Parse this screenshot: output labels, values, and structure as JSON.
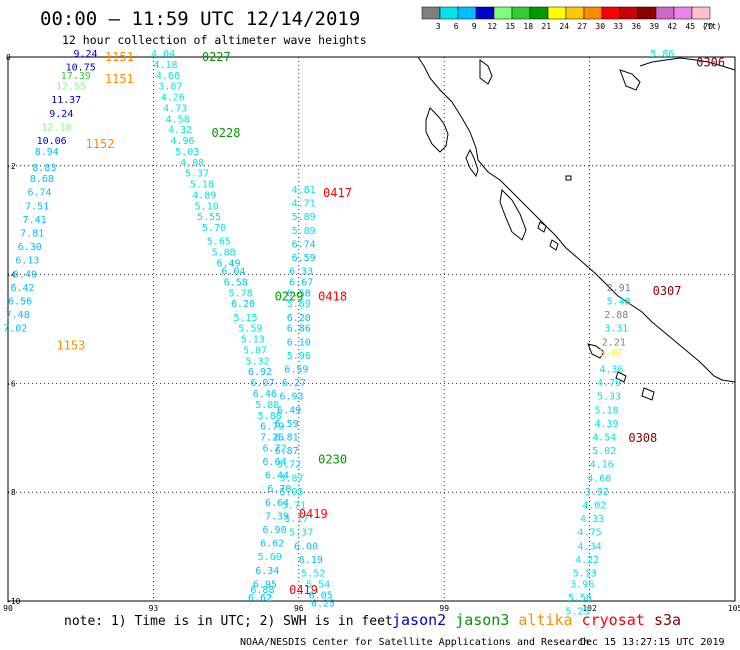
{
  "header": {
    "title": "00:00 – 11:59 UTC 12/14/2019",
    "subtitle": "12 hour collection of altimeter wave heights"
  },
  "colorbar": {
    "colors": [
      "#7f7f7f",
      "#00e5e5",
      "#00bfff",
      "#0000cd",
      "#7fff7f",
      "#32cd32",
      "#009900",
      "#ffff00",
      "#ffc800",
      "#ff8c00",
      "#ff0000",
      "#cd0000",
      "#8b0000",
      "#cd69c9",
      "#ee82ee",
      "#ffc0cb"
    ],
    "labels": [
      "3",
      "6",
      "9",
      "12",
      "15",
      "18",
      "21",
      "24",
      "27",
      "30",
      "33",
      "36",
      "39",
      "42",
      "45",
      "70"
    ],
    "unit": "(ft)"
  },
  "axes": {
    "x_ticks": [
      "90",
      "93",
      "96",
      "99",
      "102",
      "105"
    ],
    "y_ticks": [
      "0",
      "-2",
      "-4",
      "-6",
      "-8",
      "-10"
    ],
    "xlim": [
      90,
      105
    ],
    "ylim": [
      -10,
      0
    ]
  },
  "footer": {
    "note": "note: 1) Time is in UTC; 2) SWH is in feet",
    "credit": "NOAA/NESDIS Center for Satellite Applications and Research",
    "timestamp": "Dec 15 13:27:15 UTC 2019"
  },
  "legend": [
    {
      "name": "jason2",
      "color": "#0000cd"
    },
    {
      "name": "jason3",
      "color": "#009900"
    },
    {
      "name": "altika",
      "color": "#ff8c00"
    },
    {
      "name": "cryosat",
      "color": "#ff0000"
    },
    {
      "name": "s3a",
      "color": "#8b0000"
    }
  ],
  "chart_data": {
    "type": "scatter",
    "xlabel": "",
    "ylabel": "",
    "grid": true,
    "track_times": [
      {
        "text": "1151",
        "lon": 92.0,
        "lat": 0.0,
        "color": "#ff8c00"
      },
      {
        "text": "1151",
        "lon": 92.0,
        "lat": -0.4,
        "color": "#ff8c00"
      },
      {
        "text": "1152",
        "lon": 91.6,
        "lat": -1.6,
        "color": "#ff8c00"
      },
      {
        "text": "1153",
        "lon": 91.0,
        "lat": -5.3,
        "color": "#ff8c00"
      },
      {
        "text": "0227",
        "lon": 94.0,
        "lat": 0.0,
        "color": "#009900"
      },
      {
        "text": "0228",
        "lon": 94.2,
        "lat": -1.4,
        "color": "#009900"
      },
      {
        "text": "0229",
        "lon": 95.5,
        "lat": -4.4,
        "color": "#009900"
      },
      {
        "text": "0230",
        "lon": 96.4,
        "lat": -7.4,
        "color": "#009900"
      },
      {
        "text": "0417",
        "lon": 96.5,
        "lat": -2.5,
        "color": "#ff0000"
      },
      {
        "text": "0418",
        "lon": 96.4,
        "lat": -4.4,
        "color": "#ff0000"
      },
      {
        "text": "0419",
        "lon": 96.0,
        "lat": -8.4,
        "color": "#ff0000"
      },
      {
        "text": "0419",
        "lon": 95.8,
        "lat": -9.8,
        "color": "#ff0000"
      },
      {
        "text": "0307",
        "lon": 103.3,
        "lat": -4.3,
        "color": "#8b0000"
      },
      {
        "text": "0308",
        "lon": 102.8,
        "lat": -7.0,
        "color": "#8b0000"
      },
      {
        "text": "0306",
        "lon": 104.2,
        "lat": -0.1,
        "color": "#8b0000"
      }
    ],
    "series": [
      {
        "name": "altika",
        "color_by_value": true,
        "points": [
          {
            "lon": 91.6,
            "lat": 0.0,
            "v": 9.24,
            "color": "#0000cd"
          },
          {
            "lon": 91.5,
            "lat": -0.25,
            "v": 10.75,
            "color": "#0000cd"
          },
          {
            "lon": 91.4,
            "lat": -0.4,
            "v": 17.39,
            "color": "#32cd32"
          },
          {
            "lon": 91.3,
            "lat": -0.6,
            "v": 12.55,
            "color": "#7fff7f"
          },
          {
            "lon": 91.2,
            "lat": -0.85,
            "v": 11.37,
            "color": "#0000cd"
          },
          {
            "lon": 91.1,
            "lat": -1.1,
            "v": 9.24,
            "color": "#0000cd"
          },
          {
            "lon": 91.0,
            "lat": -1.35,
            "v": 12.18,
            "color": "#7fff7f"
          },
          {
            "lon": 90.9,
            "lat": -1.6,
            "v": 10.06,
            "color": "#0000cd"
          },
          {
            "lon": 90.8,
            "lat": -1.8,
            "v": 8.94,
            "color": "#00bfff"
          },
          {
            "lon": 90.75,
            "lat": -2.1,
            "v": 8.83,
            "color": "#00bfff"
          },
          {
            "lon": 90.7,
            "lat": -2.3,
            "v": 8.68,
            "color": "#00bfff"
          },
          {
            "lon": 90.65,
            "lat": -2.55,
            "v": 6.74,
            "color": "#00bfff"
          },
          {
            "lon": 90.6,
            "lat": -2.8,
            "v": 7.51,
            "color": "#00bfff"
          },
          {
            "lon": 90.55,
            "lat": -3.05,
            "v": 7.41,
            "color": "#00bfff"
          },
          {
            "lon": 90.5,
            "lat": -3.3,
            "v": 7.81,
            "color": "#00bfff"
          },
          {
            "lon": 90.45,
            "lat": -3.55,
            "v": 6.3,
            "color": "#00bfff"
          },
          {
            "lon": 90.4,
            "lat": -3.8,
            "v": 6.13,
            "color": "#00bfff"
          },
          {
            "lon": 90.35,
            "lat": -4.05,
            "v": 6.49,
            "color": "#00bfff"
          },
          {
            "lon": 90.3,
            "lat": -4.3,
            "v": 6.42,
            "color": "#00bfff"
          },
          {
            "lon": 90.25,
            "lat": -4.55,
            "v": 6.56,
            "color": "#00bfff"
          },
          {
            "lon": 90.2,
            "lat": -4.8,
            "v": 7.48,
            "color": "#00bfff"
          },
          {
            "lon": 90.15,
            "lat": -5.05,
            "v": 7.02,
            "color": "#00bfff"
          }
        ]
      },
      {
        "name": "jason3",
        "points": [
          {
            "lon": 93.2,
            "lat": 0.0,
            "v": 4.04
          },
          {
            "lon": 93.25,
            "lat": -0.2,
            "v": 4.18
          },
          {
            "lon": 93.3,
            "lat": -0.4,
            "v": 4.66
          },
          {
            "lon": 93.35,
            "lat": -0.6,
            "v": 3.87
          },
          {
            "lon": 93.4,
            "lat": -0.8,
            "v": 4.26
          },
          {
            "lon": 93.45,
            "lat": -1.0,
            "v": 4.73
          },
          {
            "lon": 93.5,
            "lat": -1.2,
            "v": 4.58
          },
          {
            "lon": 93.55,
            "lat": -1.4,
            "v": 4.32
          },
          {
            "lon": 93.6,
            "lat": -1.6,
            "v": 4.96
          },
          {
            "lon": 93.7,
            "lat": -1.8,
            "v": 5.03
          },
          {
            "lon": 93.8,
            "lat": -2.0,
            "v": 4.88
          },
          {
            "lon": 93.9,
            "lat": -2.2,
            "v": 5.37
          },
          {
            "lon": 94.0,
            "lat": -2.4,
            "v": 5.18
          },
          {
            "lon": 94.05,
            "lat": -2.6,
            "v": 4.89
          },
          {
            "lon": 94.1,
            "lat": -2.8,
            "v": 5.1
          },
          {
            "lon": 94.15,
            "lat": -3.0,
            "v": 5.55
          },
          {
            "lon": 94.25,
            "lat": -3.2,
            "v": 5.7
          },
          {
            "lon": 94.35,
            "lat": -3.45,
            "v": 5.65
          },
          {
            "lon": 94.45,
            "lat": -3.65,
            "v": 5.88
          },
          {
            "lon": 94.55,
            "lat": -3.85,
            "v": 6.49
          },
          {
            "lon": 94.65,
            "lat": -4.0,
            "v": 6.04
          },
          {
            "lon": 94.7,
            "lat": -4.2,
            "v": 6.58
          },
          {
            "lon": 94.8,
            "lat": -4.4,
            "v": 5.78
          },
          {
            "lon": 94.85,
            "lat": -4.6,
            "v": 6.2
          },
          {
            "lon": 94.9,
            "lat": -4.85,
            "v": 5.15
          },
          {
            "lon": 95.0,
            "lat": -5.05,
            "v": 5.59
          },
          {
            "lon": 95.05,
            "lat": -5.25,
            "v": 5.13
          },
          {
            "lon": 95.1,
            "lat": -5.45,
            "v": 5.87
          },
          {
            "lon": 95.15,
            "lat": -5.65,
            "v": 5.32
          },
          {
            "lon": 95.2,
            "lat": -5.85,
            "v": 6.92
          },
          {
            "lon": 95.25,
            "lat": -6.05,
            "v": 6.07
          },
          {
            "lon": 95.3,
            "lat": -6.25,
            "v": 6.46
          },
          {
            "lon": 95.35,
            "lat": -6.45,
            "v": 5.88
          },
          {
            "lon": 95.4,
            "lat": -6.65,
            "v": 5.88
          },
          {
            "lon": 95.45,
            "lat": -6.85,
            "v": 6.79
          },
          {
            "lon": 95.45,
            "lat": -7.05,
            "v": 7.25
          },
          {
            "lon": 95.5,
            "lat": -7.25,
            "v": 6.72
          },
          {
            "lon": 95.5,
            "lat": -7.5,
            "v": 6.64
          },
          {
            "lon": 95.55,
            "lat": -7.75,
            "v": 6.44
          },
          {
            "lon": 95.6,
            "lat": -8.0,
            "v": 6.7
          },
          {
            "lon": 95.55,
            "lat": -8.25,
            "v": 6.64
          },
          {
            "lon": 95.55,
            "lat": -8.5,
            "v": 7.39
          },
          {
            "lon": 95.5,
            "lat": -8.75,
            "v": 6.9
          },
          {
            "lon": 95.45,
            "lat": -9.0,
            "v": 6.62
          },
          {
            "lon": 95.4,
            "lat": -9.25,
            "v": 5.6
          },
          {
            "lon": 95.35,
            "lat": -9.5,
            "v": 6.34
          },
          {
            "lon": 95.3,
            "lat": -9.75,
            "v": 6.95
          },
          {
            "lon": 95.25,
            "lat": -9.85,
            "v": 6.88
          },
          {
            "lon": 95.2,
            "lat": -10.0,
            "v": 6.62
          }
        ]
      },
      {
        "name": "cryosat",
        "points": [
          {
            "lon": 96.1,
            "lat": -2.5,
            "v": 4.81
          },
          {
            "lon": 96.1,
            "lat": -2.75,
            "v": 4.71
          },
          {
            "lon": 96.1,
            "lat": -3.0,
            "v": 5.89
          },
          {
            "lon": 96.1,
            "lat": -3.25,
            "v": 5.89
          },
          {
            "lon": 96.1,
            "lat": -3.5,
            "v": 6.74
          },
          {
            "lon": 96.1,
            "lat": -3.75,
            "v": 6.59
          },
          {
            "lon": 96.05,
            "lat": -4.0,
            "v": 6.33
          },
          {
            "lon": 96.05,
            "lat": -4.2,
            "v": 6.67
          },
          {
            "lon": 96.0,
            "lat": -4.4,
            "v": 6.58
          },
          {
            "lon": 96.0,
            "lat": -4.6,
            "v": 5.69
          },
          {
            "lon": 96.0,
            "lat": -4.85,
            "v": 6.2
          },
          {
            "lon": 96.0,
            "lat": -5.05,
            "v": 6.86
          },
          {
            "lon": 96.0,
            "lat": -5.3,
            "v": 6.1
          },
          {
            "lon": 96.0,
            "lat": -5.55,
            "v": 5.96
          },
          {
            "lon": 95.95,
            "lat": -5.8,
            "v": 6.59
          },
          {
            "lon": 95.9,
            "lat": -6.05,
            "v": 6.27
          },
          {
            "lon": 95.85,
            "lat": -6.3,
            "v": 6.93
          },
          {
            "lon": 95.8,
            "lat": -6.55,
            "v": 6.49
          },
          {
            "lon": 95.75,
            "lat": -6.8,
            "v": 6.59
          },
          {
            "lon": 95.75,
            "lat": -7.05,
            "v": 6.81
          },
          {
            "lon": 95.75,
            "lat": -7.3,
            "v": 6.87
          },
          {
            "lon": 95.8,
            "lat": -7.55,
            "v": 5.72
          },
          {
            "lon": 95.85,
            "lat": -7.8,
            "v": 5.87
          },
          {
            "lon": 95.85,
            "lat": -8.05,
            "v": 5.95
          },
          {
            "lon": 95.9,
            "lat": -8.3,
            "v": 5.71
          },
          {
            "lon": 95.95,
            "lat": -8.55,
            "v": 5.17
          },
          {
            "lon": 96.05,
            "lat": -8.8,
            "v": 5.37
          },
          {
            "lon": 96.15,
            "lat": -9.05,
            "v": 6.0
          },
          {
            "lon": 96.25,
            "lat": -9.3,
            "v": 6.19
          },
          {
            "lon": 96.3,
            "lat": -9.55,
            "v": 5.52
          },
          {
            "lon": 96.4,
            "lat": -9.75,
            "v": 5.54
          },
          {
            "lon": 96.45,
            "lat": -9.95,
            "v": 6.05
          },
          {
            "lon": 96.5,
            "lat": -10.1,
            "v": 6.25
          }
        ]
      },
      {
        "name": "s3a",
        "points": [
          {
            "lon": 103.5,
            "lat": 0.0,
            "v": 5.86
          },
          {
            "lon": 102.6,
            "lat": -4.3,
            "v": 2.91,
            "color": "#7f7f7f"
          },
          {
            "lon": 102.6,
            "lat": -4.55,
            "v": 5.48
          },
          {
            "lon": 102.55,
            "lat": -4.8,
            "v": 2.88,
            "color": "#7f7f7f"
          },
          {
            "lon": 102.55,
            "lat": -5.05,
            "v": 3.31
          },
          {
            "lon": 102.5,
            "lat": -5.3,
            "v": 2.21,
            "color": "#7f7f7f"
          },
          {
            "lon": 102.45,
            "lat": -5.5,
            "v": 3.02,
            "color": "#ffff00"
          },
          {
            "lon": 102.45,
            "lat": -5.8,
            "v": 4.36
          },
          {
            "lon": 102.4,
            "lat": -6.05,
            "v": 4.79
          },
          {
            "lon": 102.4,
            "lat": -6.3,
            "v": 5.33
          },
          {
            "lon": 102.35,
            "lat": -6.55,
            "v": 5.18
          },
          {
            "lon": 102.35,
            "lat": -6.8,
            "v": 4.39
          },
          {
            "lon": 102.3,
            "lat": -7.05,
            "v": 4.54
          },
          {
            "lon": 102.3,
            "lat": -7.3,
            "v": 5.02
          },
          {
            "lon": 102.25,
            "lat": -7.55,
            "v": 4.16
          },
          {
            "lon": 102.2,
            "lat": -7.8,
            "v": 4.68
          },
          {
            "lon": 102.15,
            "lat": -8.05,
            "v": 3.92
          },
          {
            "lon": 102.1,
            "lat": -8.3,
            "v": 4.02
          },
          {
            "lon": 102.05,
            "lat": -8.55,
            "v": 4.33
          },
          {
            "lon": 102.0,
            "lat": -8.8,
            "v": 4.75
          },
          {
            "lon": 102.0,
            "lat": -9.05,
            "v": 4.34
          },
          {
            "lon": 101.95,
            "lat": -9.3,
            "v": 4.22
          },
          {
            "lon": 101.9,
            "lat": -9.55,
            "v": 5.13
          },
          {
            "lon": 101.85,
            "lat": -9.75,
            "v": 3.96
          },
          {
            "lon": 101.8,
            "lat": -10.0,
            "v": 5.56
          },
          {
            "lon": 101.75,
            "lat": -10.25,
            "v": 5.23
          }
        ]
      }
    ]
  }
}
